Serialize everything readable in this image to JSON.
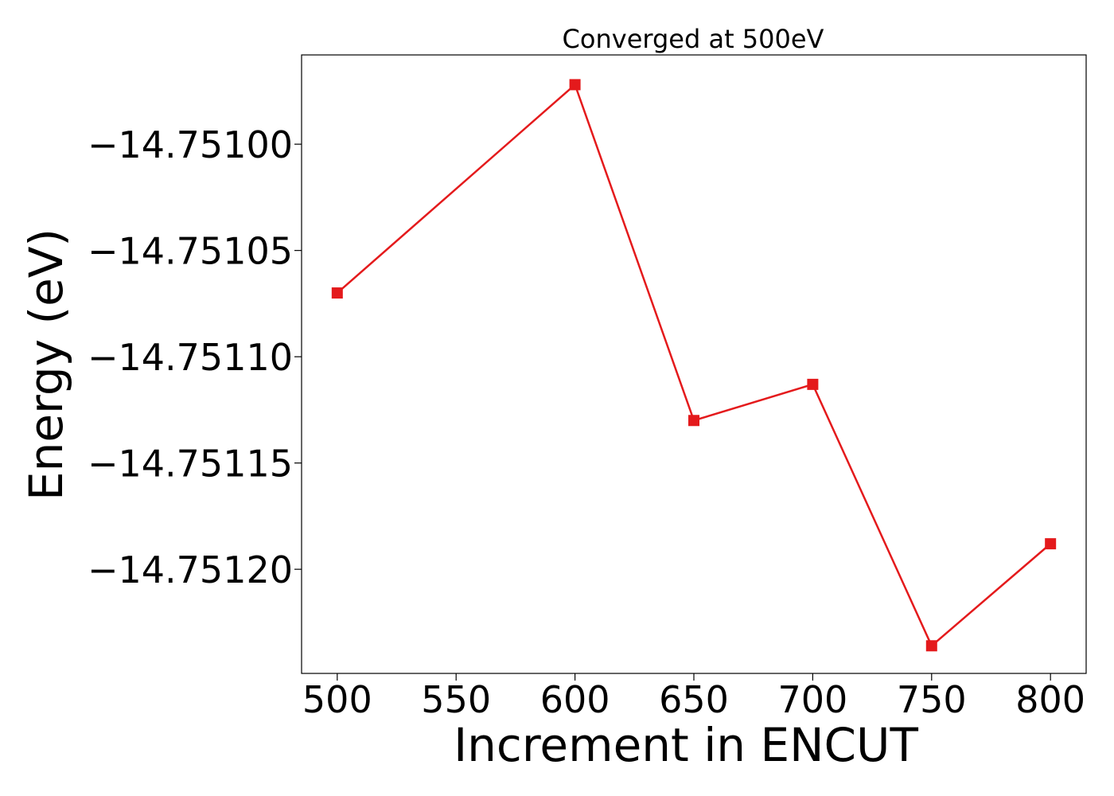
{
  "chart_data": {
    "type": "line",
    "title": "Converged at 500eV",
    "xlabel": "Increment in ENCUT",
    "ylabel": "Energy (eV)",
    "x": [
      500,
      600,
      650,
      700,
      750,
      800
    ],
    "series": [
      {
        "values": [
          -14.75107,
          -14.750972,
          -14.75113,
          -14.751113,
          -14.751236,
          -14.751188
        ],
        "color": "#e41a1c",
        "marker": "square"
      }
    ],
    "xlim": [
      485,
      815
    ],
    "ylim": [
      -14.751249,
      -14.750958
    ],
    "xticks": [
      500,
      550,
      600,
      650,
      700,
      750,
      800
    ],
    "xtick_labels": [
      "500",
      "550",
      "600",
      "650",
      "700",
      "750",
      "800"
    ],
    "yticks": [
      -14.751,
      -14.75105,
      -14.7511,
      -14.75115,
      -14.7512
    ],
    "ytick_labels": [
      "−14.75100",
      "−14.75105",
      "−14.75110",
      "−14.75115",
      "−14.75120"
    ],
    "grid": false,
    "legend": "none"
  }
}
